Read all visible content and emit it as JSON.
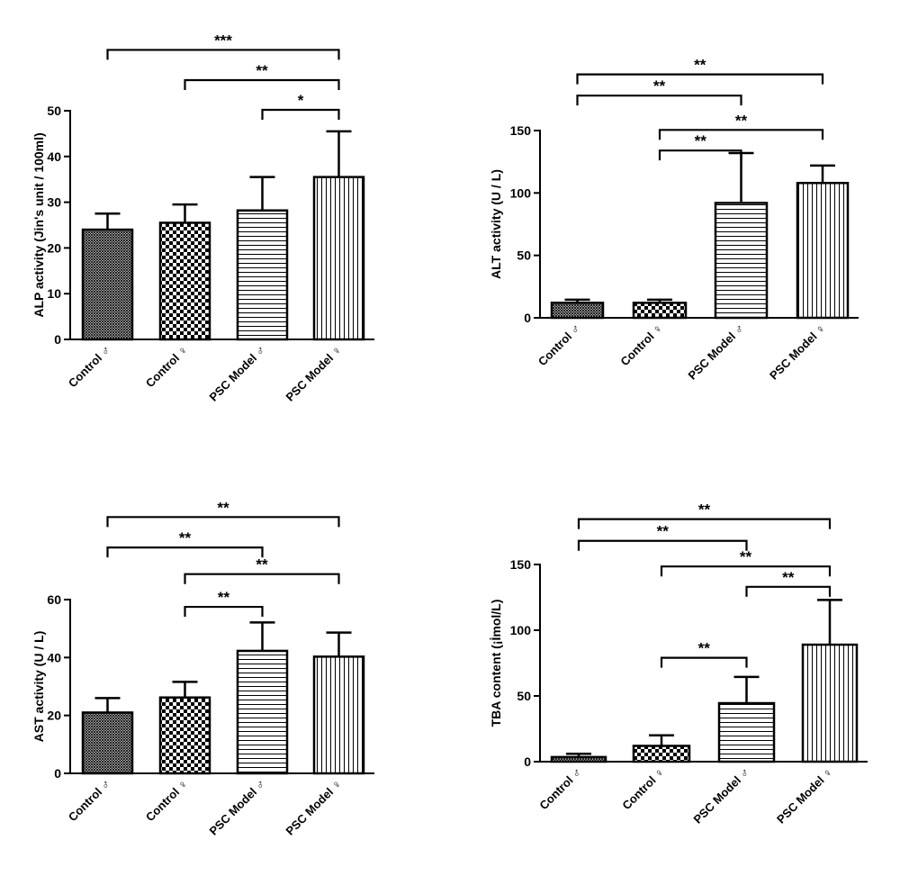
{
  "colors": {
    "axis": "#000000",
    "bar_stroke": "#000000",
    "background": "#ffffff"
  },
  "chart_data": [
    {
      "type": "bar",
      "panel": "top-left",
      "title": "",
      "xlabel": "",
      "ylabel": "ALP activity (Jin's unit / 100ml)",
      "ylim": [
        0,
        50
      ],
      "yticks": [
        0,
        10,
        20,
        30,
        40,
        50
      ],
      "categories": [
        "Control ♂",
        "Control ♀",
        "PSC Model ♂",
        "PSC Model ♀"
      ],
      "values": [
        24,
        25.5,
        28.2,
        35.5
      ],
      "errors": [
        3.5,
        4,
        7.3,
        10
      ],
      "patterns": [
        "fine-crosshatch",
        "checkerboard",
        "horizontal-lines",
        "vertical-lines"
      ],
      "significance": [
        {
          "from": 2,
          "to": 3,
          "label": "*",
          "y": 50.2
        },
        {
          "from": 1,
          "to": 3,
          "label": "**",
          "y": 56.7
        },
        {
          "from": 0,
          "to": 3,
          "label": "***",
          "y": 63.3
        }
      ]
    },
    {
      "type": "bar",
      "panel": "top-right",
      "title": "",
      "xlabel": "",
      "ylabel": "ALT activity (U / L)",
      "ylim": [
        0,
        150
      ],
      "yticks": [
        0,
        50,
        100,
        150
      ],
      "categories": [
        "Control ♂",
        "Control ♀",
        "PSC Model ♂",
        "PSC Model ♀"
      ],
      "values": [
        12,
        12,
        92,
        108
      ],
      "errors": [
        2.5,
        2.5,
        40,
        14
      ],
      "patterns": [
        "fine-crosshatch",
        "checkerboard",
        "horizontal-lines",
        "vertical-lines"
      ],
      "significance": [
        {
          "from": 1,
          "to": 2,
          "label": "**",
          "y": 134
        },
        {
          "from": 1,
          "to": 3,
          "label": "**",
          "y": 150.5
        },
        {
          "from": 0,
          "to": 2,
          "label": "**",
          "y": 178
        },
        {
          "from": 0,
          "to": 3,
          "label": "**",
          "y": 195
        }
      ]
    },
    {
      "type": "bar",
      "panel": "bottom-left",
      "title": "",
      "xlabel": "",
      "ylabel": "AST activity (U / L)",
      "ylim": [
        0,
        60
      ],
      "yticks": [
        0,
        20,
        40,
        60
      ],
      "categories": [
        "Control ♂",
        "Control ♀",
        "PSC Model ♂",
        "PSC Model ♀"
      ],
      "values": [
        21,
        26.2,
        42.3,
        40.3
      ],
      "errors": [
        5,
        5.4,
        9.8,
        8.3
      ],
      "patterns": [
        "fine-crosshatch",
        "checkerboard",
        "horizontal-lines",
        "vertical-lines"
      ],
      "significance": [
        {
          "from": 1,
          "to": 2,
          "label": "**",
          "y": 57.5
        },
        {
          "from": 1,
          "to": 3,
          "label": "**",
          "y": 68.8
        },
        {
          "from": 0,
          "to": 2,
          "label": "**",
          "y": 78
        },
        {
          "from": 0,
          "to": 3,
          "label": "**",
          "y": 88.5
        }
      ]
    },
    {
      "type": "bar",
      "panel": "bottom-right",
      "title": "",
      "xlabel": "",
      "ylabel": "TBA content (¡İmol/L)",
      "ylim": [
        0,
        150
      ],
      "yticks": [
        0,
        50,
        100,
        150
      ],
      "categories": [
        "Control ♂",
        "Control ♀",
        "PSC Model ♂",
        "PSC Model ♀"
      ],
      "values": [
        3.5,
        12,
        44.5,
        89
      ],
      "errors": [
        2.5,
        8,
        20,
        34
      ],
      "patterns": [
        "fine-crosshatch",
        "checkerboard",
        "horizontal-lines",
        "vertical-lines"
      ],
      "significance": [
        {
          "from": 1,
          "to": 2,
          "label": "**",
          "y": 79
        },
        {
          "from": 2,
          "to": 3,
          "label": "**",
          "y": 133
        },
        {
          "from": 1,
          "to": 3,
          "label": "**",
          "y": 148.5
        },
        {
          "from": 0,
          "to": 2,
          "label": "**",
          "y": 168
        },
        {
          "from": 0,
          "to": 3,
          "label": "**",
          "y": 184.5
        }
      ]
    }
  ]
}
